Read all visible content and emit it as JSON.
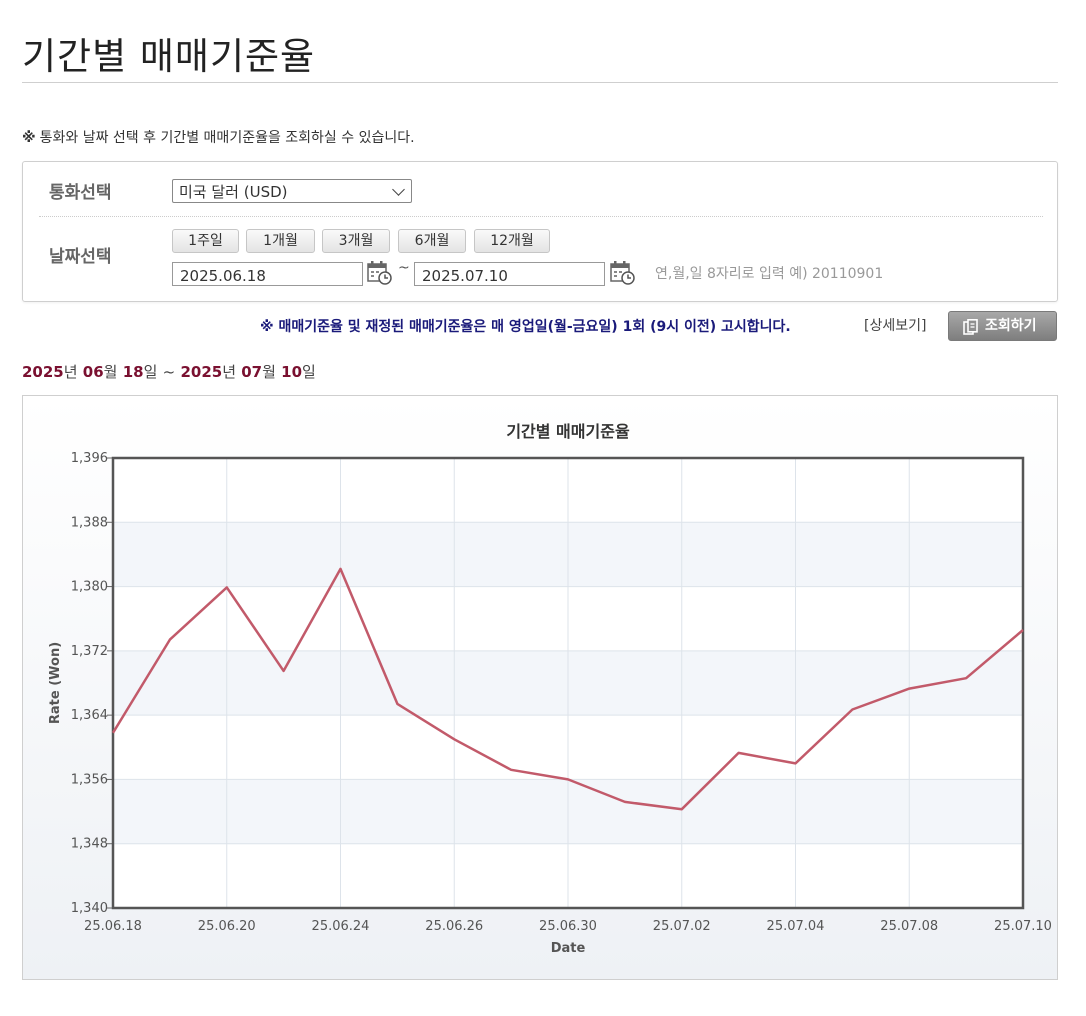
{
  "page": {
    "title": "기간별 매매기준율",
    "notice_mark": "※",
    "notice": "통화와 날짜 선택 후 기간별 매매기준율을 조회하실 수 있습니다."
  },
  "form": {
    "currency_label": "통화선택",
    "currency_value": "미국 달러 (USD)",
    "date_label": "날짜선택",
    "period_buttons": [
      "1주일",
      "1개월",
      "3개월",
      "6개월",
      "12개월"
    ],
    "start_date": "2025.06.18",
    "tilde": "~",
    "end_date": "2025.07.10",
    "date_hint": "연,월,일 8자리로 입력 예) 20110901"
  },
  "info": {
    "notice": "※ 매매기준율 및 재정된 매매기준율은 매 영업일(월-금요일) 1회 (9시 이전) 고시합니다.",
    "detail_link": "[상세보기]",
    "search_button": "조회하기"
  },
  "range": {
    "start_year": "2025",
    "start_month": "06",
    "start_day": "18",
    "end_year": "2025",
    "end_month": "07",
    "end_day": "10",
    "year_unit": "년",
    "month_unit": "월",
    "day_unit": "일",
    "sep": "~"
  },
  "chart_data": {
    "type": "line",
    "title": "기간별 매매기준율",
    "xlabel": "Date",
    "ylabel": "Rate (Won)",
    "x": [
      "25.06.18",
      "25.06.19",
      "25.06.20",
      "25.06.23",
      "25.06.24",
      "25.06.25",
      "25.06.26",
      "25.06.27",
      "25.06.30",
      "25.07.01",
      "25.07.02",
      "25.07.03",
      "25.07.04",
      "25.07.07",
      "25.07.08",
      "25.07.09",
      "25.07.10"
    ],
    "values": [
      1361.8,
      1373.4,
      1379.9,
      1369.5,
      1382.2,
      1365.4,
      1361.0,
      1357.2,
      1356.0,
      1353.2,
      1352.3,
      1359.3,
      1358.0,
      1364.7,
      1367.3,
      1368.6,
      1374.6
    ],
    "x_tick_labels": [
      "25.06.18",
      "25.06.20",
      "25.06.24",
      "25.06.26",
      "25.06.30",
      "25.07.02",
      "25.07.04",
      "25.07.08",
      "25.07.10"
    ],
    "y_ticks": [
      "1,340",
      "1,348",
      "1,356",
      "1,364",
      "1,372",
      "1,380",
      "1,388",
      "1,396"
    ],
    "ylim": [
      1340,
      1396
    ],
    "grid": true,
    "line_color": "#c25a6a"
  }
}
